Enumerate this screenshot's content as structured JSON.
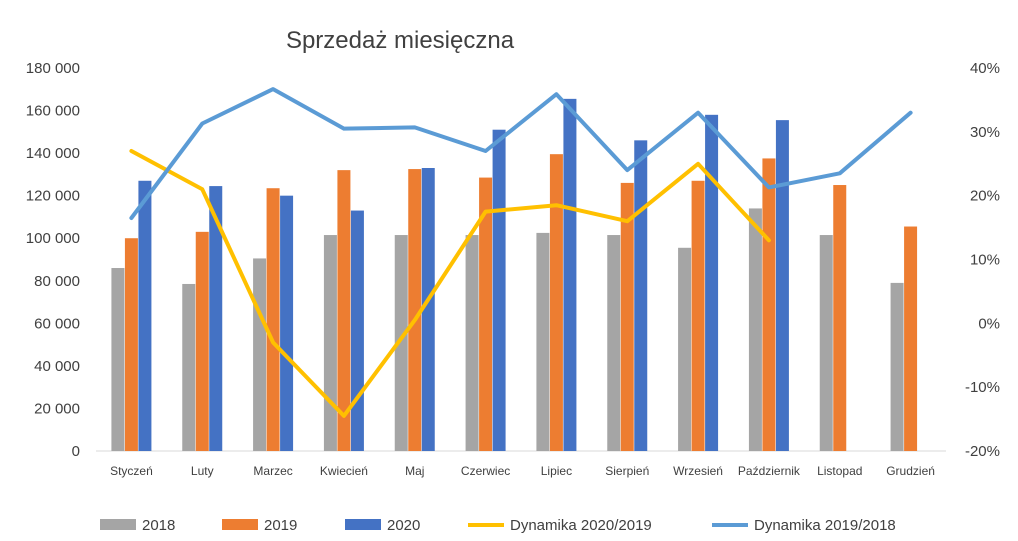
{
  "chart_data": {
    "type": "bar",
    "title": "Sprzedaż miesięczna",
    "categories": [
      "Styczeń",
      "Luty",
      "Marzec",
      "Kwiecień",
      "Maj",
      "Czerwiec",
      "Lipiec",
      "Sierpień",
      "Wrzesień",
      "Październik",
      "Listopad",
      "Grudzień"
    ],
    "y_left": {
      "ylim": [
        0,
        180000
      ],
      "ticks": [
        0,
        20000,
        40000,
        60000,
        80000,
        100000,
        120000,
        140000,
        160000,
        180000
      ],
      "tick_labels": [
        "0",
        "20 000",
        "40 000",
        "60 000",
        "80 000",
        "100 000",
        "120 000",
        "140 000",
        "160 000",
        "180 000"
      ]
    },
    "y_right": {
      "ylim": [
        -20,
        40
      ],
      "ticks": [
        -20,
        -10,
        0,
        10,
        20,
        30,
        40
      ],
      "tick_labels": [
        "-20%",
        "-10%",
        "0%",
        "10%",
        "20%",
        "30%",
        "40%"
      ]
    },
    "series": [
      {
        "name": "2018",
        "type": "bar",
        "axis": "left",
        "color": "#a5a5a5",
        "values": [
          86000,
          78500,
          90500,
          101500,
          101500,
          101500,
          102500,
          101500,
          95500,
          114000,
          101500,
          79000
        ]
      },
      {
        "name": "2019",
        "type": "bar",
        "axis": "left",
        "color": "#ed7d31",
        "values": [
          100000,
          103000,
          123500,
          132000,
          132500,
          128500,
          139500,
          126000,
          127000,
          137500,
          125000,
          105500
        ]
      },
      {
        "name": "2020",
        "type": "bar",
        "axis": "left",
        "color": "#4472c4",
        "values": [
          127000,
          124500,
          120000,
          113000,
          133000,
          151000,
          165500,
          146000,
          158000,
          155500,
          null,
          null
        ]
      },
      {
        "name": "Dynamika 2020/2019",
        "type": "line",
        "axis": "right",
        "color": "#ffc000",
        "values": [
          27,
          21,
          -3,
          -14.5,
          0.5,
          17.5,
          18.5,
          16,
          25,
          13,
          null,
          null
        ]
      },
      {
        "name": "Dynamika 2019/2018",
        "type": "line",
        "axis": "right",
        "color": "#5b9bd5",
        "values": [
          16.5,
          31.3,
          36.7,
          30.5,
          30.7,
          27,
          35.9,
          24,
          33,
          21.3,
          23.5,
          33
        ]
      }
    ],
    "legend_position": "bottom",
    "grid": false
  }
}
